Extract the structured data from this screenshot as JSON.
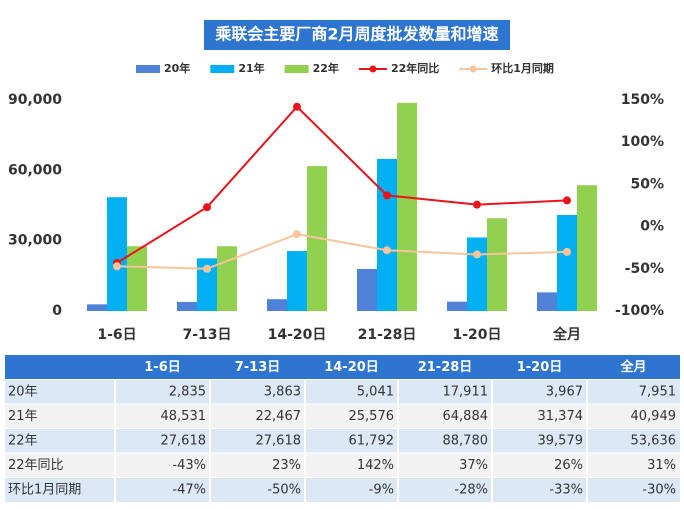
{
  "chart_data": {
    "type": "bar",
    "title": "乘联会主要厂商2月周度批发数量和增速",
    "categories": [
      "1-6日",
      "7-13日",
      "14-20日",
      "21-28日",
      "1-20日",
      "全月"
    ],
    "series": [
      {
        "name": "20年",
        "color": "#4f81d6",
        "values": [
          2835,
          3863,
          5041,
          17911,
          3967,
          7951
        ],
        "value_labels": [
          "2,835",
          "3,863",
          "5,041",
          "17,911",
          "3,967",
          "7,951"
        ]
      },
      {
        "name": "21年",
        "color": "#00b0f0",
        "values": [
          48531,
          22467,
          25576,
          64884,
          31374,
          40949
        ],
        "value_labels": [
          "48,531",
          "22,467",
          "25,576",
          "64,884",
          "31,374",
          "40,949"
        ]
      },
      {
        "name": "22年",
        "color": "#92d050",
        "values": [
          27618,
          27618,
          61792,
          88780,
          39579,
          53636
        ],
        "value_labels": [
          "27,618",
          "27,618",
          "61,792",
          "88,780",
          "39,579",
          "53,636"
        ]
      },
      {
        "name": "22年同比",
        "color": "#e8141c",
        "type": "line",
        "axis": "y2",
        "values": [
          -43,
          23,
          142,
          37,
          26,
          31
        ],
        "value_labels": [
          "-43%",
          "23%",
          "142%",
          "37%",
          "26%",
          "31%"
        ]
      },
      {
        "name": "环比1月同期",
        "color": "#f8c49c",
        "type": "line",
        "axis": "y2",
        "values": [
          -47,
          -50,
          -9,
          -28,
          -33,
          -30
        ],
        "value_labels": [
          "-47%",
          "-50%",
          "-9%",
          "-28%",
          "-33%",
          "-30%"
        ]
      }
    ],
    "ylim": [
      0,
      90000
    ],
    "yticks": [
      0,
      {
        "value": 30000,
        "label": "30,000"
      },
      {
        "value": 60000,
        "label": "60,000"
      },
      {
        "value": 90000,
        "label": "90,000"
      }
    ],
    "y2lim": [
      -100,
      150
    ],
    "y2ticks": [
      {
        "value": -100,
        "label": "-100%"
      },
      {
        "value": -50,
        "label": "-50%"
      },
      {
        "value": 0,
        "label": "0%"
      },
      {
        "value": 50,
        "label": "50%"
      },
      {
        "value": 100,
        "label": "100%"
      },
      {
        "value": 150,
        "label": "150%"
      }
    ],
    "grid": false,
    "legend": "top"
  }
}
